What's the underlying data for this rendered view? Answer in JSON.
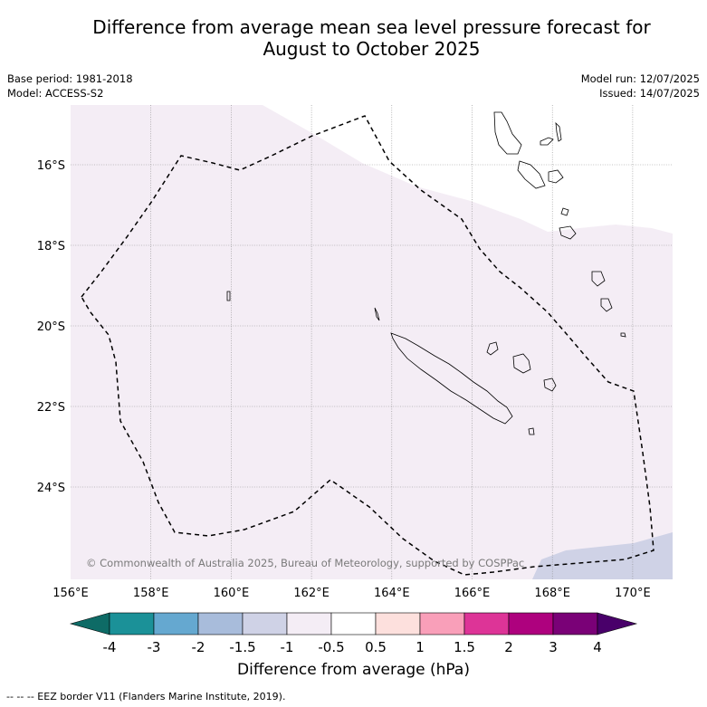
{
  "title_line1": "Difference from average mean sea level pressure forecast for",
  "title_line2": "August to October 2025",
  "meta": {
    "base_period": "Base period: 1981-2018",
    "model": "Model: ACCESS-S2",
    "model_run": "Model run: 12/07/2025",
    "issued": "Issued: 14/07/2025"
  },
  "map": {
    "lon_ticks": [
      "156°E",
      "158°E",
      "160°E",
      "162°E",
      "164°E",
      "166°E",
      "168°E",
      "170°E"
    ],
    "lat_ticks": [
      "16°S",
      "18°S",
      "20°S",
      "22°S",
      "24°S"
    ],
    "credit": "© Commonwealth of Australia 2025, Bureau of Meteorology, supported by COSPPac",
    "colors": {
      "weak_negative": "#f4edf5",
      "moderate_negative": "#cfd2e6",
      "eez": "#000000",
      "land_outline": "#000000"
    }
  },
  "colorbar": {
    "title": "Difference from average (hPa)",
    "labels": [
      "-4",
      "-3",
      "-2",
      "-1.5",
      "-1",
      "-0.5",
      "0.5",
      "1",
      "1.5",
      "2",
      "3",
      "4"
    ],
    "colors": [
      "#0e6b66",
      "#1b9198",
      "#65a8d0",
      "#a8bcdb",
      "#cfd2e6",
      "#f4edf5",
      "#ffffff",
      "#fde0dd",
      "#f99fb9",
      "#dd3497",
      "#ae017e",
      "#7a0177",
      "#49006a"
    ]
  },
  "footer": "--  --  -- EEZ border V11 (Flanders Marine Institute, 2019)."
}
